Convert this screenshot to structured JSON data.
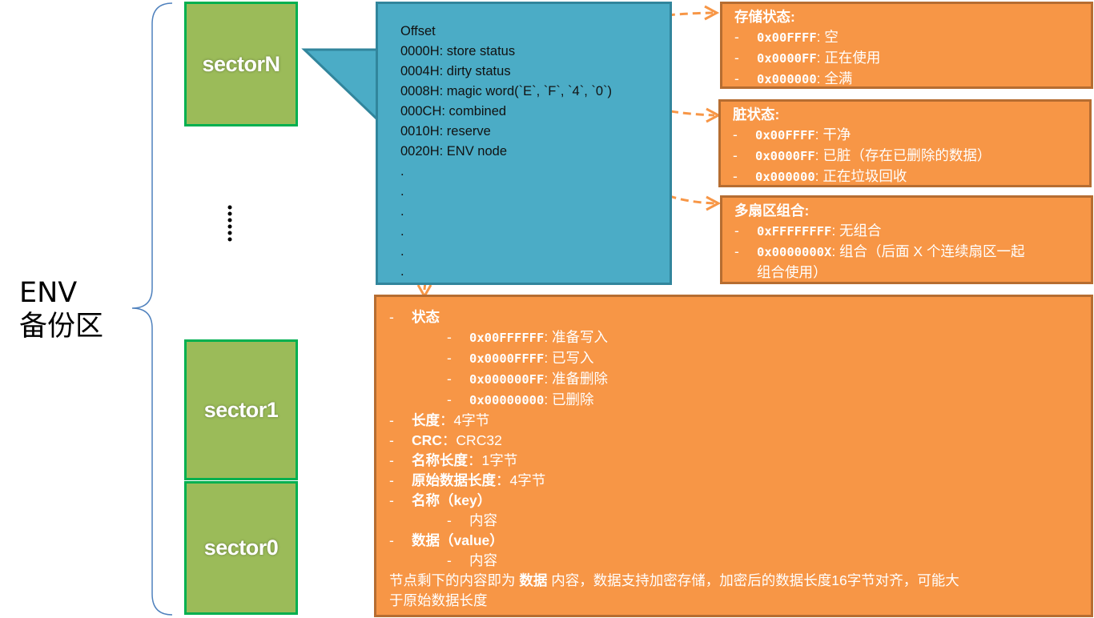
{
  "left": {
    "env_line1": "ENV",
    "env_line2": "备份区",
    "ellipsis": "vertical-dots"
  },
  "sectors": {
    "top": "sectorN",
    "middle": "sector1",
    "bottom": "sector0"
  },
  "offsets": {
    "title": "Offset",
    "items": [
      "0000H: store status",
      "0004H: dirty status",
      "0008H: magic word(`E`, `F`, `4`, `0`)",
      "000CH: combined",
      "0010H: reserve",
      "0020H: ENV node",
      ".",
      ".",
      ".",
      ".",
      ".",
      "."
    ]
  },
  "store_status": {
    "title": "存储状态:",
    "items": [
      {
        "code": "0x00FFFF",
        "text": ": 空"
      },
      {
        "code": "0x0000FF",
        "text": ": 正在使用"
      },
      {
        "code": "0x000000",
        "text": ": 全满"
      }
    ]
  },
  "dirty_status": {
    "title": "脏状态:",
    "items": [
      {
        "code": "0x00FFFF",
        "text": ": 干净"
      },
      {
        "code": "0x0000FF",
        "text": ": 已脏（存在已删除的数据）"
      },
      {
        "code": "0x000000",
        "text": ": 正在垃圾回收"
      }
    ]
  },
  "combined": {
    "title": "多扇区组合:",
    "items": [
      {
        "code": "0xFFFFFFFF",
        "text": ": 无组合"
      },
      {
        "code": "0x0000000X",
        "text": ": 组合（后面 X 个连续扇区一起"
      }
    ],
    "wrap": "组合使用）"
  },
  "node": {
    "status_label": "状态",
    "status_items": [
      {
        "code": "0x00FFFFFF",
        "text": ": 准备写入"
      },
      {
        "code": "0x0000FFFF",
        "text": ": 已写入"
      },
      {
        "code": "0x000000FF",
        "text": ": 准备删除"
      },
      {
        "code": "0x00000000",
        "text": ": 已删除"
      }
    ],
    "fields": [
      {
        "label": "长度",
        "value": "：4字节"
      },
      {
        "label": "CRC",
        "value": "：CRC32"
      },
      {
        "label": "名称长度",
        "value": "：1字节"
      },
      {
        "label": "原始数据长度",
        "value": "：4字节"
      }
    ],
    "key_label": "名称（key）",
    "key_sub": "内容",
    "value_label": "数据（value）",
    "value_sub": "内容",
    "note_pre": "节点剩下的内容即为 ",
    "note_bold": "数据",
    "note_post": " 内容，数据支持加密存储，加密后的数据长度16字节对齐，可能大",
    "note_line2": "于原始数据长度"
  },
  "colors": {
    "sector": "#9bbb59",
    "sector_border": "#00b050",
    "callout": "#4bacc6",
    "orange": "#f79646",
    "orange_border": "#b66d31",
    "arrow": "#f79646",
    "brace": "#4f81bd"
  }
}
